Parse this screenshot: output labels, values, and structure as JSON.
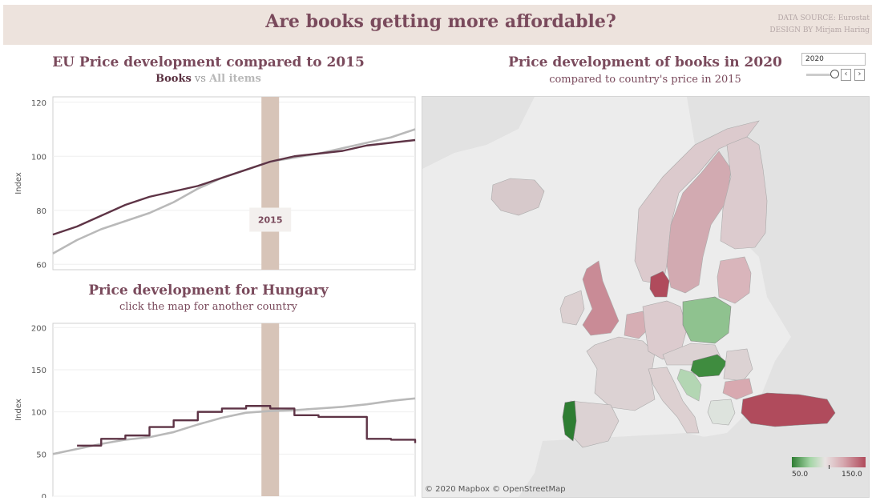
{
  "header": {
    "title": "Are books getting more affordable?",
    "data_source": "DATA SOURCE: Eurostat",
    "design_by": "DESIGN BY Mirjam Haring"
  },
  "colors": {
    "books": "#5e3446",
    "all_items": "#b9b9b9",
    "band": "#d7c4b8",
    "title": "#7a4a5c"
  },
  "eu_panel": {
    "title": "EU Price development compared to 2015",
    "legend_books": "Books",
    "legend_vs": "vs",
    "legend_all": "All items"
  },
  "hungary_panel": {
    "title": "Price development for Hungary",
    "subtitle": "click the map for another country"
  },
  "map_panel": {
    "title": "Price development of books in 2020",
    "subtitle": "compared to country's price in 2015",
    "year_value": "2020",
    "prev_icon": "‹",
    "next_icon": "›",
    "attribution": "© 2020 Mapbox  © OpenStreetMap",
    "legend_min": "50.0",
    "legend_max": "150.0"
  },
  "chart_data": [
    {
      "type": "line",
      "ylabel": "Index",
      "xlabel": "",
      "ylim": [
        58,
        122
      ],
      "yticks": [
        60,
        80,
        100,
        120
      ],
      "band_label": "2015",
      "band_x": 2015,
      "x": [
        2006,
        2007,
        2008,
        2009,
        2010,
        2011,
        2012,
        2013,
        2014,
        2015,
        2016,
        2017,
        2018,
        2019,
        2020,
        2021
      ],
      "series": [
        {
          "name": "Books",
          "values": [
            71,
            74,
            78,
            82,
            85,
            87,
            89,
            92,
            95,
            98,
            100,
            101,
            102,
            104,
            105,
            106
          ]
        },
        {
          "name": "All items",
          "values": [
            64,
            69,
            73,
            76,
            79,
            83,
            88,
            92,
            95,
            98,
            99.5,
            101,
            103,
            105,
            107,
            110
          ]
        }
      ]
    },
    {
      "type": "line",
      "ylabel": "Index",
      "xlabel": "",
      "ylim": [
        0,
        205
      ],
      "yticks": [
        0,
        50,
        100,
        150,
        200
      ],
      "band_x": 2015,
      "x": [
        2006,
        2007,
        2008,
        2009,
        2010,
        2011,
        2012,
        2013,
        2014,
        2015,
        2016,
        2017,
        2018,
        2019,
        2020,
        2021
      ],
      "series": [
        {
          "name": "Books",
          "values": [
            null,
            60,
            68,
            72,
            82,
            90,
            100,
            104,
            107,
            104,
            96,
            94,
            94,
            68,
            67,
            63
          ]
        },
        {
          "name": "All items",
          "values": [
            50,
            56,
            62,
            67,
            70,
            76,
            85,
            93,
            99,
            101,
            102,
            104,
            106,
            109,
            113,
            116
          ]
        }
      ]
    }
  ]
}
